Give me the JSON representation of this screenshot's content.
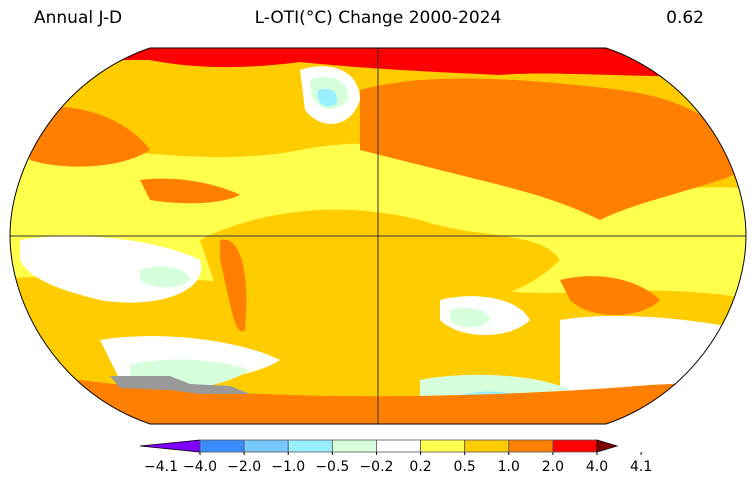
{
  "header": {
    "left": "Annual J-D",
    "center": "L-OTI(°C) Change 2000-2024",
    "right": "0.62"
  },
  "map": {
    "projection": "Robinson",
    "colors": {
      "base": "#ffcc00",
      "warm": "#ff8000",
      "hot": "#ff0000",
      "mild": "#ffff4c",
      "neutral": "#ffffff",
      "cool": "#d6ffdc",
      "cooler": "#99eeff",
      "missing": "#999999"
    }
  },
  "colorbar": {
    "labels": [
      "−4.1",
      "−4.0",
      "−2.0",
      "−1.0",
      "−0.5",
      "−0.2",
      "0.2",
      "0.5",
      "1.0",
      "2.0",
      "4.0",
      "4.1"
    ],
    "colors": [
      "#8000ff",
      "#3b8cff",
      "#77c8ff",
      "#99eeff",
      "#d6ffdc",
      "#ffffff",
      "#ffff4c",
      "#ffcc00",
      "#ff8000",
      "#ff0000",
      "#800000"
    ],
    "under_color": "#8000ff",
    "over_color": "#800000"
  }
}
